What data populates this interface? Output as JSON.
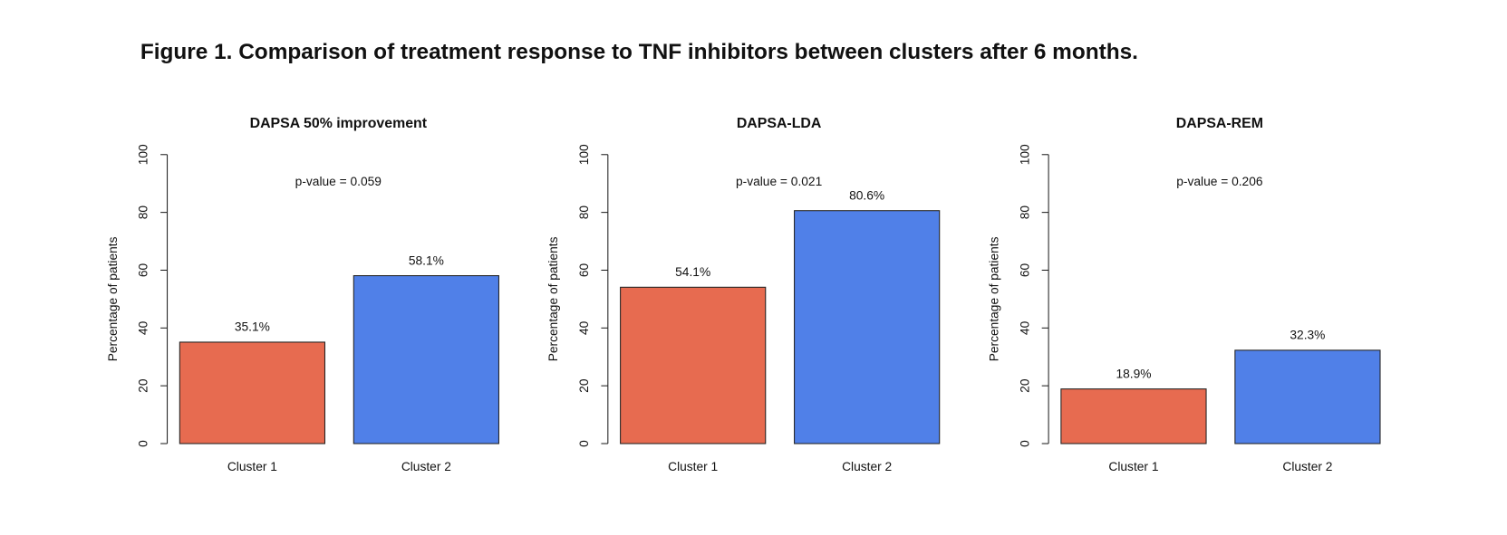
{
  "figure_title": "Figure 1. Comparison of treatment response to TNF inhibitors between clusters after 6 months.",
  "chart_data": [
    {
      "type": "bar",
      "title": "DAPSA 50% improvement",
      "ylabel": "Percentage of patients",
      "annotation": "p-value = 0.059",
      "categories": [
        "Cluster 1",
        "Cluster 2"
      ],
      "values": [
        35.1,
        58.1
      ],
      "value_labels": [
        "35.1%",
        "58.1%"
      ],
      "colors": [
        "#e76b50",
        "#5080e8"
      ],
      "ylim": [
        0,
        100
      ],
      "yticks": [
        0,
        20,
        40,
        60,
        80,
        100
      ]
    },
    {
      "type": "bar",
      "title": "DAPSA-LDA",
      "ylabel": "Percentage of patients",
      "annotation": "p-value = 0.021",
      "categories": [
        "Cluster 1",
        "Cluster 2"
      ],
      "values": [
        54.1,
        80.6
      ],
      "value_labels": [
        "54.1%",
        "80.6%"
      ],
      "colors": [
        "#e76b50",
        "#5080e8"
      ],
      "ylim": [
        0,
        100
      ],
      "yticks": [
        0,
        20,
        40,
        60,
        80,
        100
      ]
    },
    {
      "type": "bar",
      "title": "DAPSA-REM",
      "ylabel": "Percentage of patients",
      "annotation": "p-value = 0.206",
      "categories": [
        "Cluster 1",
        "Cluster 2"
      ],
      "values": [
        18.9,
        32.3
      ],
      "value_labels": [
        "18.9%",
        "32.3%"
      ],
      "colors": [
        "#e76b50",
        "#5080e8"
      ],
      "ylim": [
        0,
        100
      ],
      "yticks": [
        0,
        20,
        40,
        60,
        80,
        100
      ]
    }
  ]
}
